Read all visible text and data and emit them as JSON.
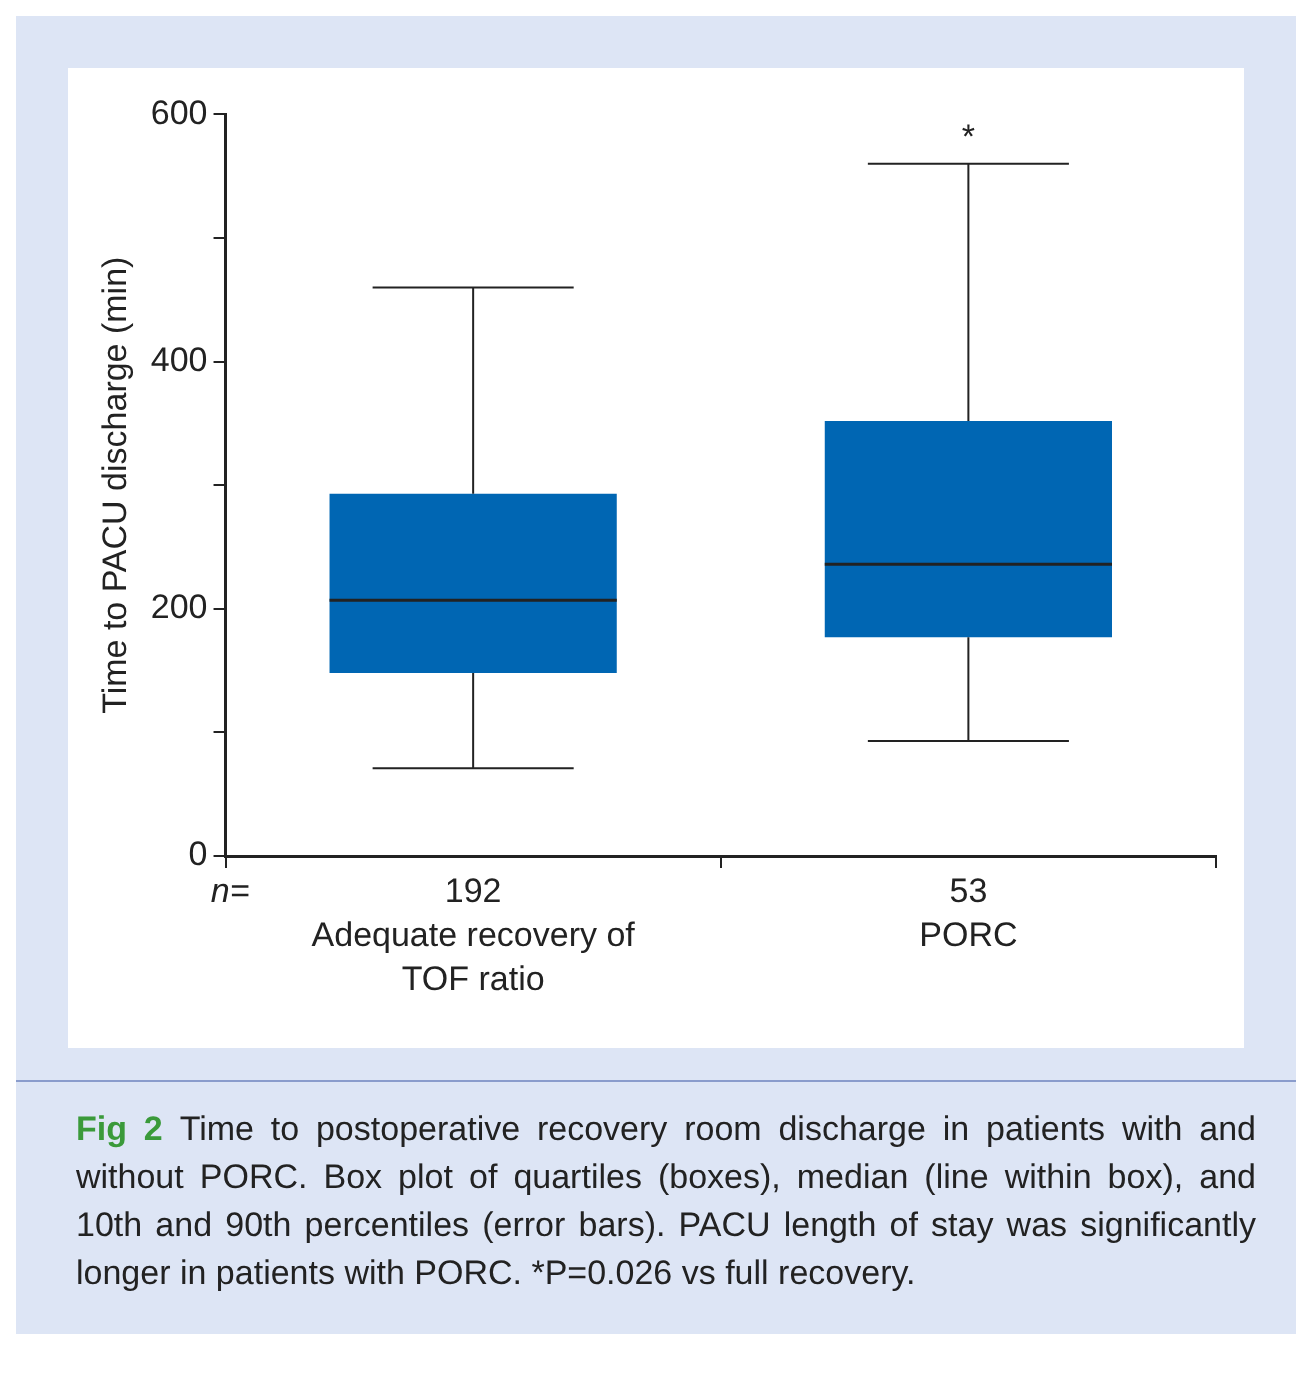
{
  "chart_data": {
    "type": "box",
    "title": "Fig 2",
    "ylabel": "Time to PACU discharge (min)",
    "categories": [
      "Adequate recovery of TOF ratio",
      "PORC"
    ],
    "boxes": [
      {
        "low": 71,
        "q1": 148,
        "median": 207,
        "q3": 293,
        "high": 460
      },
      {
        "low": 93,
        "q1": 177,
        "median": 236,
        "q3": 352,
        "high": 560
      }
    ],
    "color": "#0066b3",
    "ylim": [
      0,
      600
    ],
    "yticks": [
      0,
      {
        "value": 100,
        "label": null
      },
      200,
      {
        "value": 300,
        "label": null
      },
      400,
      {
        "value": 500,
        "label": null
      },
      600
    ],
    "grid": false,
    "annotations": [
      "n=",
      "192",
      "53",
      "*",
      "Time to postoperative recovery room discharge in patients with and without PORC. Box plot of quartiles (boxes), median (line within box), and 10th and 90th percentiles (error bars). PACU length of stay was significantly longer in patients with PORC. *P=0.026 vs full recovery."
    ]
  }
}
